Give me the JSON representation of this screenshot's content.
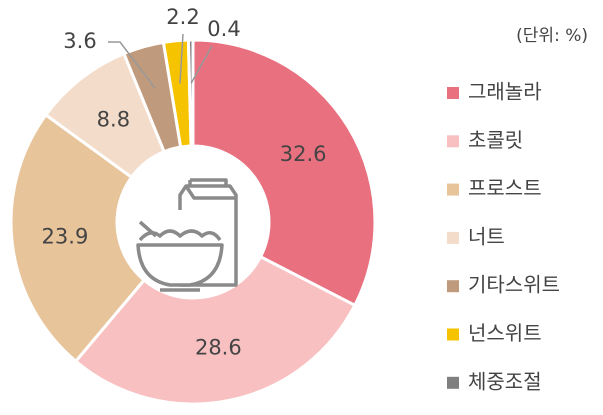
{
  "chart_data": {
    "type": "donut",
    "subtitle": "(단위: %)",
    "categories": [
      "그래놀라",
      "초콜릿",
      "프로스트",
      "너트",
      "기타스위트",
      "넌스위트",
      "체중조절"
    ],
    "values": [
      32.6,
      28.6,
      23.9,
      8.8,
      3.6,
      2.2,
      0.4
    ],
    "colors": [
      "#e8707f",
      "#f9c0c1",
      "#e8c49b",
      "#f4dccb",
      "#c09a7c",
      "#f6c300",
      "#7f7f7f"
    ],
    "legend": "right"
  }
}
